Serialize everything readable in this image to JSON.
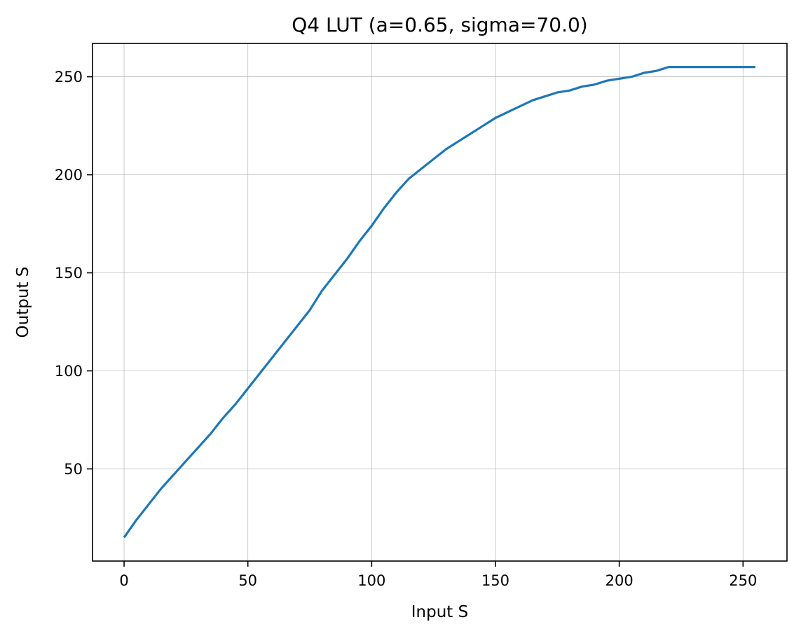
{
  "chart_data": {
    "type": "line",
    "title": "Q4 LUT (a=0.65, sigma=70.0)",
    "xlabel": "Input S",
    "ylabel": "Output S",
    "xlim": [
      -12.75,
      267.75
    ],
    "ylim": [
      3.0,
      267.0
    ],
    "xticks": [
      0,
      50,
      100,
      150,
      200,
      250
    ],
    "yticks": [
      50,
      100,
      150,
      200,
      250
    ],
    "grid": true,
    "legend": "none",
    "series": [
      {
        "color": "#1f77b4",
        "points": [
          [
            0,
            15
          ],
          [
            5,
            24
          ],
          [
            10,
            32
          ],
          [
            15,
            40
          ],
          [
            20,
            47
          ],
          [
            25,
            54
          ],
          [
            30,
            61
          ],
          [
            35,
            68
          ],
          [
            40,
            76
          ],
          [
            45,
            83
          ],
          [
            50,
            91
          ],
          [
            55,
            99
          ],
          [
            60,
            107
          ],
          [
            65,
            115
          ],
          [
            70,
            123
          ],
          [
            75,
            131
          ],
          [
            80,
            141
          ],
          [
            85,
            149
          ],
          [
            90,
            157
          ],
          [
            95,
            166
          ],
          [
            100,
            174
          ],
          [
            105,
            183
          ],
          [
            110,
            191
          ],
          [
            115,
            198
          ],
          [
            120,
            203
          ],
          [
            125,
            208
          ],
          [
            130,
            213
          ],
          [
            135,
            217
          ],
          [
            140,
            221
          ],
          [
            145,
            225
          ],
          [
            150,
            229
          ],
          [
            155,
            232
          ],
          [
            160,
            235
          ],
          [
            165,
            238
          ],
          [
            170,
            240
          ],
          [
            175,
            242
          ],
          [
            180,
            243
          ],
          [
            185,
            245
          ],
          [
            190,
            246
          ],
          [
            195,
            248
          ],
          [
            200,
            249
          ],
          [
            205,
            250
          ],
          [
            210,
            252
          ],
          [
            215,
            253
          ],
          [
            220,
            255
          ],
          [
            225,
            255
          ],
          [
            230,
            255
          ],
          [
            235,
            255
          ],
          [
            240,
            255
          ],
          [
            245,
            255
          ],
          [
            250,
            255
          ],
          [
            255,
            255
          ]
        ]
      }
    ]
  }
}
